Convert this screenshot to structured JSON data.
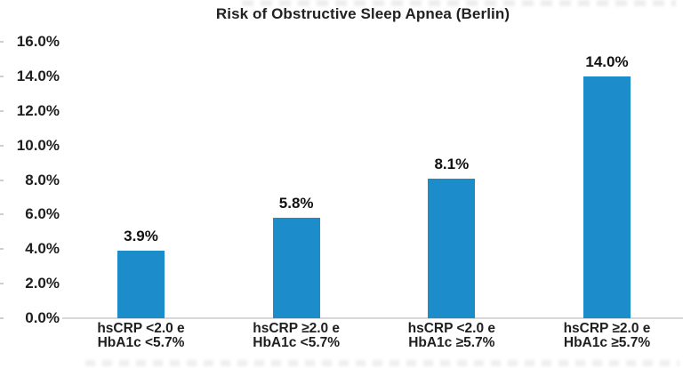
{
  "page": {
    "background": "#ffffff"
  },
  "chart_data": {
    "type": "bar",
    "title": "Risk of Obstructive Sleep Apnea (Berlin)",
    "categories": [
      [
        "hsCRP <2.0 e",
        "HbA1c <5.7%"
      ],
      [
        "hsCRP ≥2.0 e",
        "HbA1c <5.7%"
      ],
      [
        "hsCRP <2.0 e",
        "HbA1c ≥5.7%"
      ],
      [
        "hsCRP ≥2.0 e",
        "HbA1c ≥5.7%"
      ]
    ],
    "values": [
      3.9,
      5.8,
      8.1,
      14.0
    ],
    "value_labels": [
      "3.9%",
      "5.8%",
      "8.1%",
      "14.0%"
    ],
    "xlabel": "",
    "ylabel": "",
    "ylim": [
      0,
      16
    ],
    "ytick_step": 2,
    "ytick_labels": [
      "16.0%",
      "14.0%",
      "12.0%",
      "10.0%",
      "8.0%",
      "6.0%",
      "4.0%",
      "2.0%",
      "0.0%"
    ],
    "grid": false,
    "legend": null,
    "bar_color": "#1c8ccb",
    "axis_line_color": "#d8d8d8",
    "text_color": "#1f1f1f"
  }
}
